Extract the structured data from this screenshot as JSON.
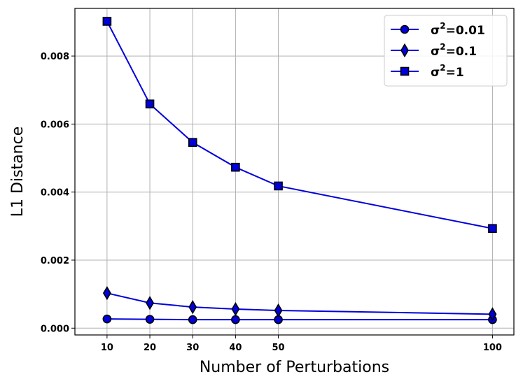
{
  "chart_data": {
    "type": "line",
    "title": "",
    "xlabel": "Number of Perturbations",
    "ylabel": "L1 Distance",
    "x": [
      10,
      20,
      30,
      40,
      50,
      100
    ],
    "x_ticks": [
      "10",
      "20",
      "30",
      "40",
      "50",
      "100"
    ],
    "y_ticks": [
      "0.000",
      "0.002",
      "0.004",
      "0.006",
      "0.008"
    ],
    "xlim": [
      2.5,
      105
    ],
    "ylim": [
      -0.0002,
      0.0094
    ],
    "grid": true,
    "legend_position": "top-right",
    "line_color": "#0000dd",
    "series": [
      {
        "name": "σ²=0.01",
        "name_base": "σ",
        "name_sup": "2",
        "name_rest": "=0.01",
        "marker": "circle",
        "values": [
          0.00027,
          0.00026,
          0.00025,
          0.00025,
          0.00025,
          0.00025
        ]
      },
      {
        "name": "σ²=0.1",
        "name_base": "σ",
        "name_sup": "2",
        "name_rest": "=0.1",
        "marker": "diamond",
        "values": [
          0.00103,
          0.00074,
          0.00062,
          0.00056,
          0.00052,
          0.00041
        ]
      },
      {
        "name": "σ²=1",
        "name_base": "σ",
        "name_sup": "2",
        "name_rest": "=1",
        "marker": "square",
        "values": [
          0.00902,
          0.00659,
          0.00546,
          0.00473,
          0.00418,
          0.00293
        ]
      }
    ]
  }
}
